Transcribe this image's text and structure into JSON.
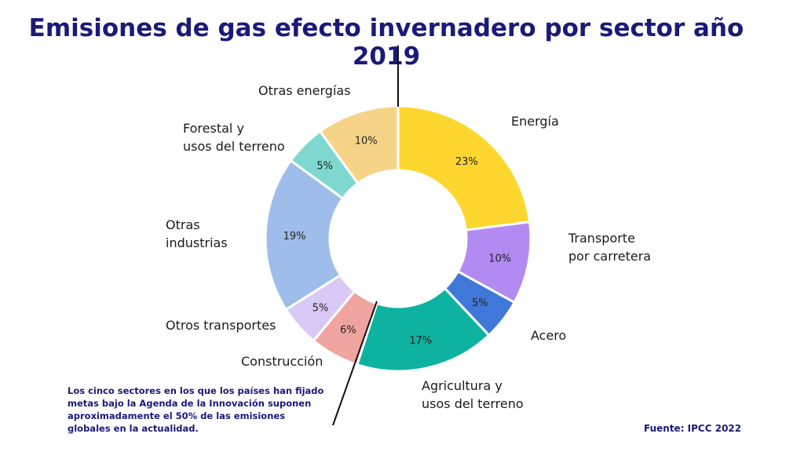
{
  "title": "Emisiones de gas efecto invernadero por sector año 2019",
  "footnote": "Los cinco sectores en los que los países han fijado metas bajo la Agenda de la Innovación suponen aproximadamente el 50% de las emisiones globales en la actualidad.",
  "source": "Fuente: IPCC 2022",
  "chart_data": {
    "type": "pie",
    "title": "Emisiones de gas efecto invernadero por sector año 2019",
    "style": "donut",
    "slices": [
      {
        "label": [
          "Energía"
        ],
        "value": 23,
        "text": "23%",
        "color": "#fdd62e"
      },
      {
        "label": [
          "Transporte",
          "por carretera"
        ],
        "value": 10,
        "text": "10%",
        "color": "#b28bf2"
      },
      {
        "label": [
          "Acero"
        ],
        "value": 5,
        "text": "5%",
        "color": "#3f78d8"
      },
      {
        "label": [
          "Agricultura y",
          "usos del terreno"
        ],
        "value": 17,
        "text": "17%",
        "color": "#0db3a0"
      },
      {
        "label": [
          "Construcción"
        ],
        "value": 6,
        "text": "6%",
        "color": "#f0a4a0"
      },
      {
        "label": [
          "Otros transportes"
        ],
        "value": 5,
        "text": "5%",
        "color": "#d8c9f6"
      },
      {
        "label": [
          "Otras",
          "industrias"
        ],
        "value": 19,
        "text": "19%",
        "color": "#9fbdea"
      },
      {
        "label": [
          "Forestal y",
          "usos del terreno"
        ],
        "value": 5,
        "text": "5%",
        "color": "#7fd8d0"
      },
      {
        "label": [
          "Otras energías"
        ],
        "value": 10,
        "text": "10%",
        "color": "#f5d488"
      }
    ]
  }
}
